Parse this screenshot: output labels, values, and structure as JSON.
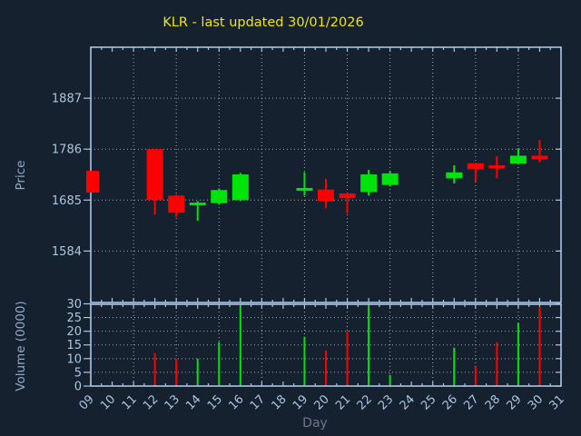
{
  "title": {
    "text": "KLR - last updated 30/01/2026"
  },
  "colors": {
    "background": "#16212f",
    "axis": "#a9c6e4",
    "tick_label": "#a9c6e4",
    "grid": "#b9c2cc",
    "title": "#efe412",
    "axis_label": "#8fa9c7",
    "day_label": "#72728c",
    "bullish": "#00e40b",
    "bearish": "#fe0000"
  },
  "price_panel": {
    "ylabel": "Price",
    "yticks": [
      1887,
      1786,
      1685,
      1584
    ]
  },
  "volume_panel": {
    "ylabel": "Volume (0000)",
    "yticks": [
      30,
      25,
      20,
      15,
      10,
      5,
      0
    ]
  },
  "x_axis": {
    "label": "Day",
    "tick_days": [
      "09",
      "10",
      "11",
      "12",
      "13",
      "14",
      "15",
      "16",
      "17",
      "18",
      "19",
      "20",
      "21",
      "22",
      "23",
      "24",
      "25",
      "26",
      "27",
      "28",
      "29",
      "30",
      "31"
    ],
    "grid_days": [
      11,
      13,
      15,
      17,
      19,
      21,
      23,
      25,
      27,
      29
    ]
  },
  "chart_data": {
    "type": "candlestick",
    "title": "KLR - last updated 30/01/2026",
    "xlabel": "Day",
    "ylabel": "Price",
    "volume_ylabel": "Volume (0000)",
    "price_yticks": [
      1584,
      1685,
      1786,
      1887
    ],
    "volume_ylim": [
      0,
      30
    ],
    "x_range_days": [
      9,
      31
    ],
    "grid": true,
    "candles": [
      {
        "day": 9,
        "open": 1743,
        "high": 1743,
        "low": 1700,
        "close": 1700,
        "volume": null
      },
      {
        "day": 12,
        "open": 1786,
        "high": 1786,
        "low": 1656,
        "close": 1685,
        "volume": 12
      },
      {
        "day": 13,
        "open": 1694,
        "high": 1696,
        "low": 1652,
        "close": 1660,
        "volume": 10
      },
      {
        "day": 14,
        "open": 1675,
        "high": 1683,
        "low": 1644,
        "close": 1680,
        "volume": 10
      },
      {
        "day": 15,
        "open": 1679,
        "high": 1708,
        "low": 1676,
        "close": 1705,
        "volume": 16
      },
      {
        "day": 16,
        "open": 1685,
        "high": 1739,
        "low": 1683,
        "close": 1736,
        "volume": 29
      },
      {
        "day": 19,
        "open": 1706,
        "high": 1740,
        "low": 1694,
        "close": 1709,
        "volume": 18
      },
      {
        "day": 20,
        "open": 1706,
        "high": 1727,
        "low": 1669,
        "close": 1683,
        "volume": 13
      },
      {
        "day": 21,
        "open": 1698,
        "high": 1701,
        "low": 1659,
        "close": 1689,
        "volume": 20
      },
      {
        "day": 22,
        "open": 1701,
        "high": 1745,
        "low": 1694,
        "close": 1736,
        "volume": 29
      },
      {
        "day": 23,
        "open": 1715,
        "high": 1742,
        "low": 1712,
        "close": 1738,
        "volume": 4
      },
      {
        "day": 26,
        "open": 1728,
        "high": 1754,
        "low": 1718,
        "close": 1740,
        "volume": 14
      },
      {
        "day": 27,
        "open": 1758,
        "high": 1759,
        "low": 1721,
        "close": 1746,
        "volume": 7
      },
      {
        "day": 28,
        "open": 1754,
        "high": 1772,
        "low": 1728,
        "close": 1748,
        "volume": 16
      },
      {
        "day": 29,
        "open": 1757,
        "high": 1788,
        "low": 1757,
        "close": 1773,
        "volume": 23
      },
      {
        "day": 30,
        "open": 1773,
        "high": 1804,
        "low": 1760,
        "close": 1766,
        "volume": 29
      }
    ]
  }
}
